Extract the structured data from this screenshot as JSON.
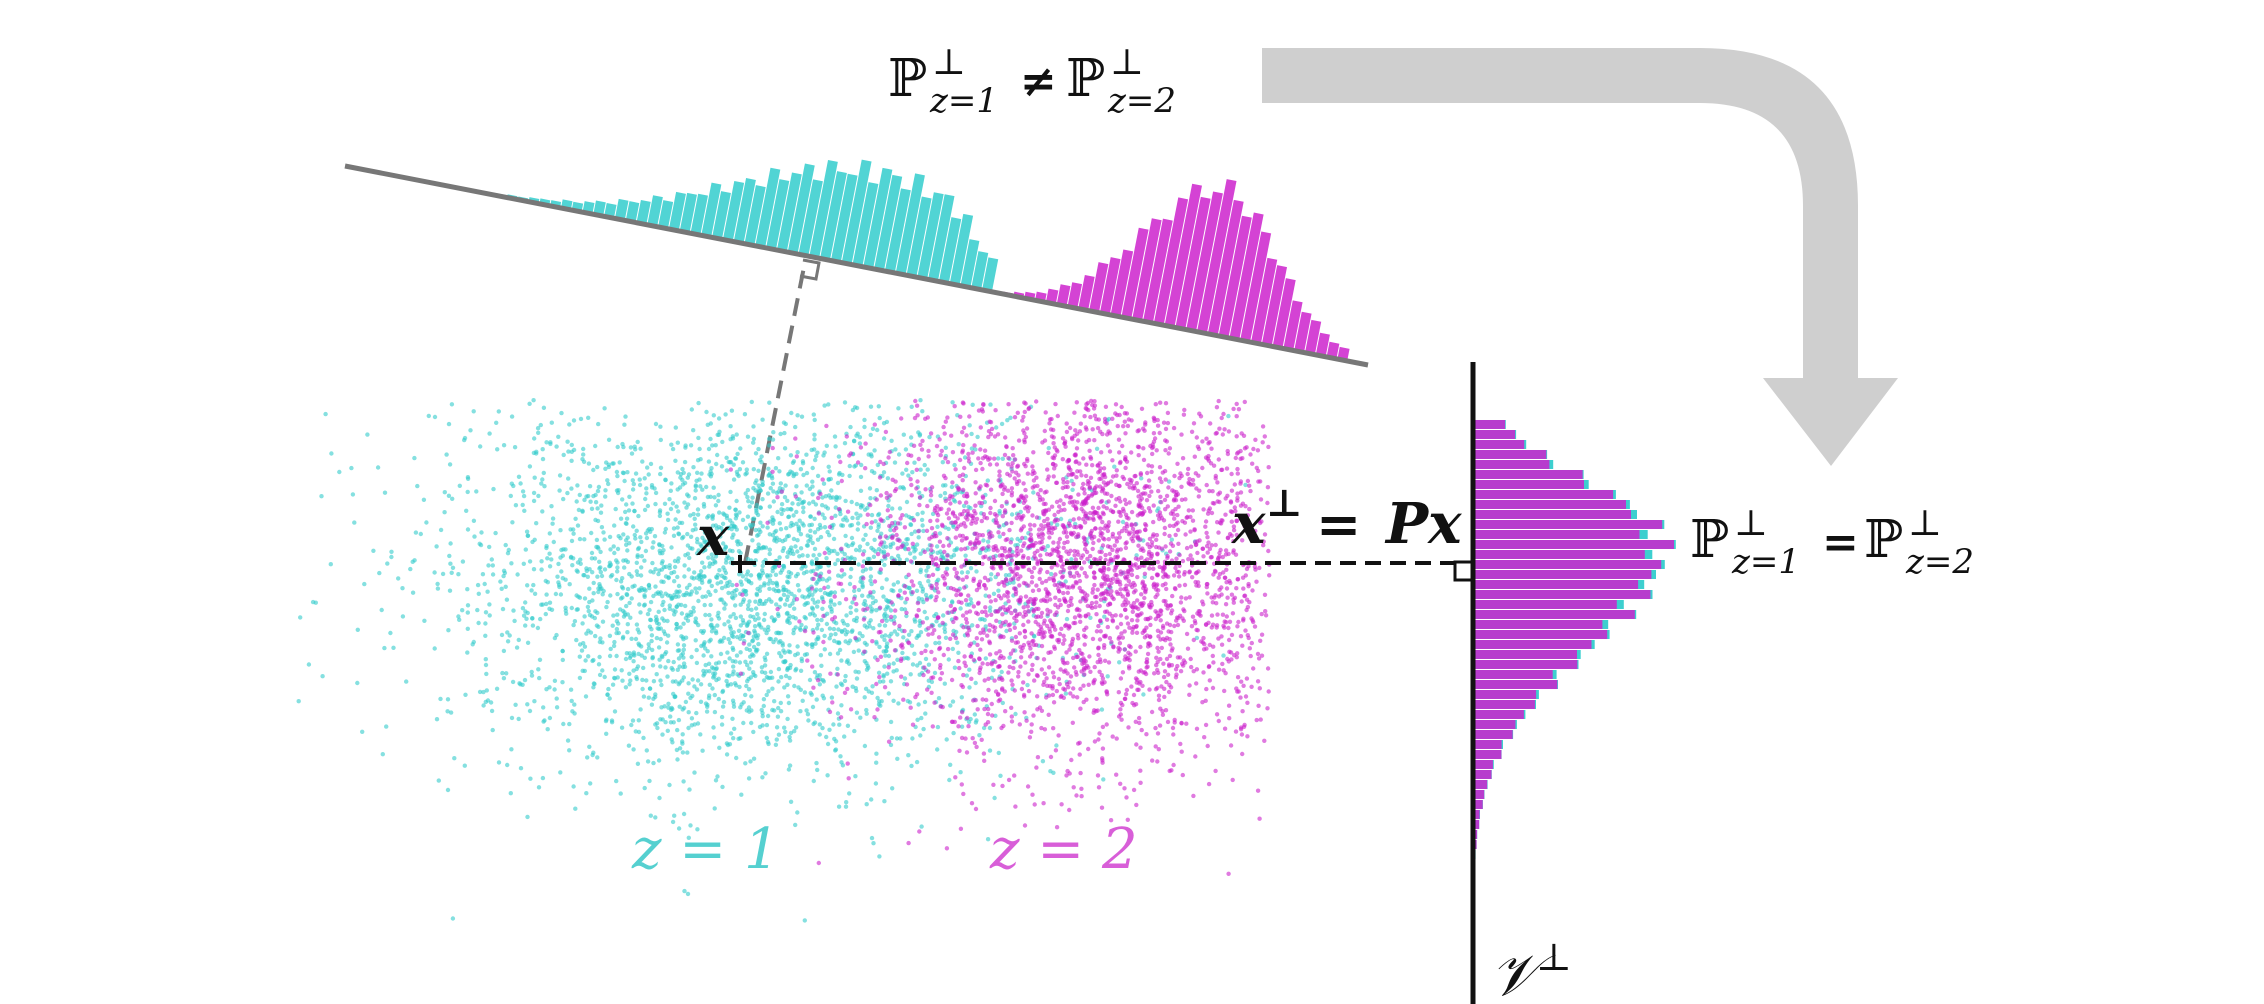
{
  "colors": {
    "teal": "#33CCCC",
    "magenta": "#CC22CC",
    "arrow": "#CFCFCF",
    "axis": "#777777",
    "ink": "#111111"
  },
  "labels": {
    "top_formula": {
      "P": "ℙ",
      "perp": "⊥",
      "sub1": "z=1",
      "neq": "≠",
      "sub2": "z=2"
    },
    "right_formula": {
      "P": "ℙ",
      "perp": "⊥",
      "sub1": "z=1",
      "eq": "=",
      "sub2": "z=2"
    },
    "point_label": "x",
    "projection_label": {
      "x": "x",
      "perp": "⊥",
      "eq": "=",
      "Px": "Px"
    },
    "class1_label": "z = 1",
    "class2_label": "z = 2",
    "subspace_label": {
      "V": "𝒱",
      "perp": "⊥"
    }
  },
  "icons": {
    "flow_arrow": "curved-down-arrow-icon",
    "right_angle": "right-angle-marker-icon"
  }
}
